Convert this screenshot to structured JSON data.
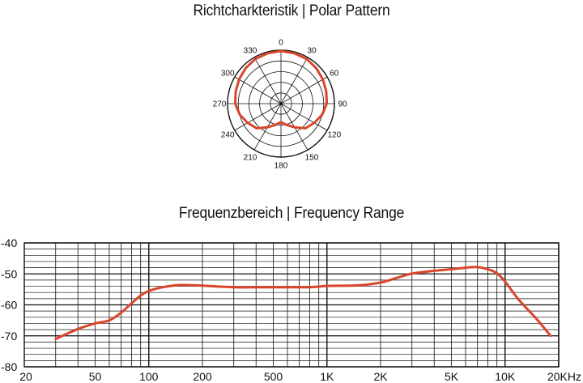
{
  "chart_data": [
    {
      "type": "polar",
      "title": "Richtcharkteristik | Polar Pattern",
      "angle_labels": [
        "0",
        "30",
        "60",
        "90",
        "120",
        "150",
        "180",
        "210",
        "240",
        "270",
        "300",
        "330"
      ],
      "rings": 5,
      "series": [
        {
          "color": "#d9452b",
          "angles": [
            0,
            15,
            30,
            45,
            60,
            75,
            90,
            105,
            120,
            135,
            150,
            165,
            180,
            195,
            210,
            225,
            240,
            255,
            270,
            285,
            300,
            315,
            330,
            345
          ],
          "values": [
            1.0,
            0.99,
            0.98,
            0.95,
            0.92,
            0.89,
            0.87,
            0.81,
            0.73,
            0.66,
            0.52,
            0.42,
            0.35,
            0.42,
            0.52,
            0.66,
            0.73,
            0.81,
            0.87,
            0.89,
            0.92,
            0.95,
            0.98,
            0.99
          ]
        }
      ]
    },
    {
      "type": "line",
      "title": "Frequenzbereich | Frequency Range",
      "xscale": "log",
      "xlim": [
        20,
        20000
      ],
      "ylim": [
        -80,
        -40
      ],
      "x_tick_labels": [
        {
          "value": 20,
          "label": "20"
        },
        {
          "value": 50,
          "label": "50"
        },
        {
          "value": 100,
          "label": "100"
        },
        {
          "value": 200,
          "label": "200"
        },
        {
          "value": 500,
          "label": "500"
        },
        {
          "value": 1000,
          "label": "1K"
        },
        {
          "value": 2000,
          "label": "2K"
        },
        {
          "value": 5000,
          "label": "5K"
        },
        {
          "value": 10000,
          "label": "10K"
        },
        {
          "value": 20000,
          "label": "20KHz"
        }
      ],
      "y_tick_labels": [
        {
          "value": -40,
          "label": "-40"
        },
        {
          "value": -50,
          "label": "-50"
        },
        {
          "value": -60,
          "label": "-60"
        },
        {
          "value": -70,
          "label": "-70"
        },
        {
          "value": -80,
          "label": "-80"
        }
      ],
      "grid": true,
      "series": [
        {
          "color": "#d9452b",
          "x": [
            30,
            40,
            50,
            60,
            70,
            80,
            90,
            100,
            120,
            150,
            200,
            300,
            500,
            800,
            1000,
            1500,
            2000,
            2500,
            3000,
            4000,
            5000,
            6000,
            7000,
            8000,
            9000,
            10000,
            12000,
            15000,
            18000
          ],
          "y": [
            -71,
            -67.8,
            -66,
            -65,
            -62.5,
            -59.5,
            -57,
            -55.5,
            -54.3,
            -53.6,
            -53.8,
            -54.3,
            -54.3,
            -54.3,
            -53.9,
            -53.7,
            -52.8,
            -51.2,
            -49.9,
            -49,
            -48.5,
            -48,
            -47.8,
            -48.5,
            -49.8,
            -52.5,
            -58.5,
            -64.5,
            -70
          ]
        }
      ]
    }
  ]
}
